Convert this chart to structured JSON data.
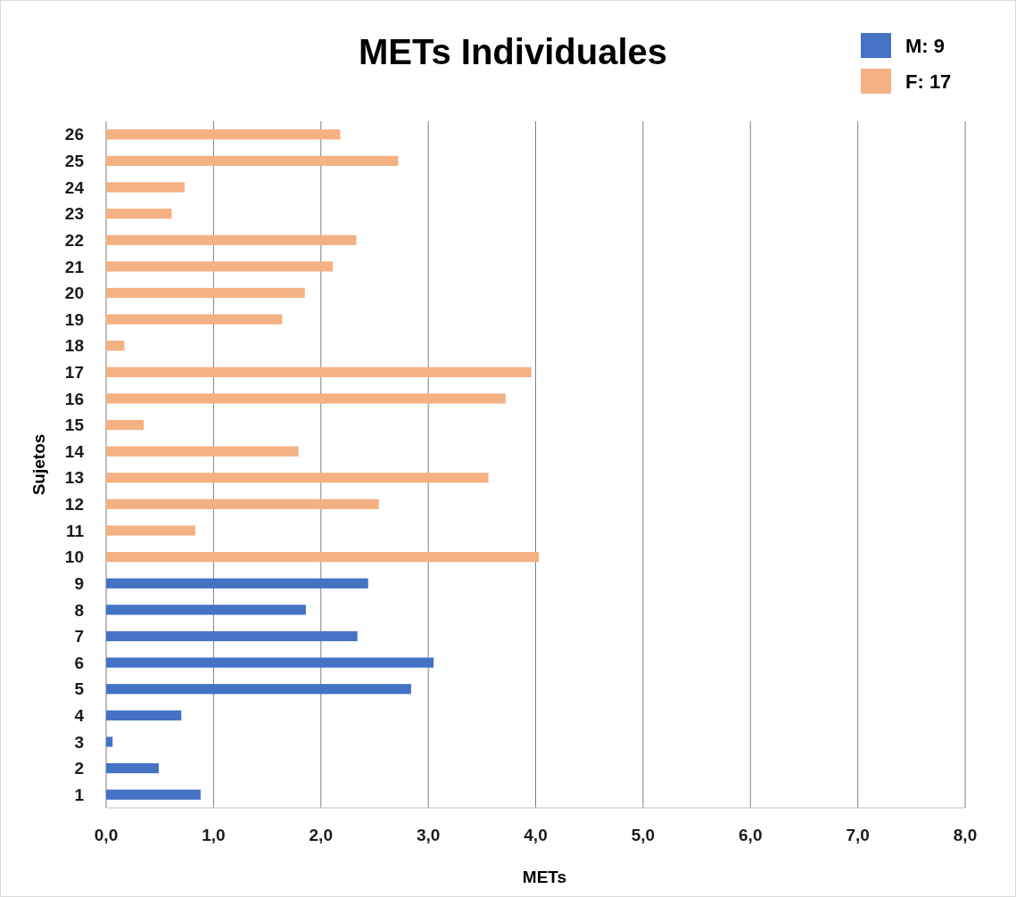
{
  "chart_data": {
    "type": "bar",
    "orientation": "horizontal",
    "title": "METs Individuales",
    "xlabel": "METs",
    "ylabel": "Sujetos",
    "categories": [
      "26",
      "25",
      "24",
      "23",
      "22",
      "21",
      "20",
      "19",
      "18",
      "17",
      "16",
      "15",
      "14",
      "13",
      "12",
      "11",
      "10",
      "9",
      "8",
      "7",
      "6",
      "5",
      "4",
      "3",
      "2",
      "1"
    ],
    "series": [
      {
        "name": "M: 9",
        "color": "#4472c4",
        "values": [
          null,
          null,
          null,
          null,
          null,
          null,
          null,
          null,
          null,
          null,
          null,
          null,
          null,
          null,
          null,
          null,
          null,
          2.44,
          1.86,
          2.34,
          3.05,
          2.84,
          0.7,
          0.06,
          0.49,
          0.88
        ]
      },
      {
        "name": "F: 17",
        "color": "#f4b183",
        "values": [
          2.18,
          2.72,
          0.73,
          0.61,
          2.33,
          2.11,
          1.85,
          1.64,
          0.17,
          3.96,
          3.72,
          0.35,
          1.79,
          3.56,
          2.54,
          0.83,
          4.03,
          null,
          null,
          null,
          null,
          null,
          null,
          null,
          null,
          null
        ]
      }
    ],
    "xlim": [
      0,
      8
    ],
    "xticks": [
      {
        "value": 0,
        "label": "0,0"
      },
      {
        "value": 1,
        "label": "1,0"
      },
      {
        "value": 2,
        "label": "2,0"
      },
      {
        "value": 3,
        "label": "3,0"
      },
      {
        "value": 4,
        "label": "4,0"
      },
      {
        "value": 5,
        "label": "5,0"
      },
      {
        "value": 6,
        "label": "6,0"
      },
      {
        "value": 7,
        "label": "7,0"
      },
      {
        "value": 8,
        "label": "8,0"
      }
    ],
    "grid": "x",
    "legend": "top right"
  }
}
